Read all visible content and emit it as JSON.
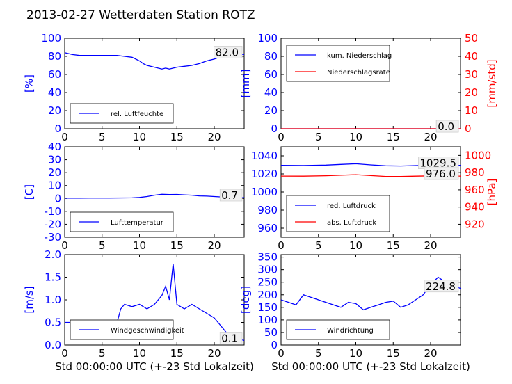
{
  "figure": {
    "title": "2013-02-27 Wetterdaten Station ROTZ"
  },
  "chart_data": [
    {
      "id": "humidity",
      "type": "line",
      "xlim": [
        0,
        24
      ],
      "x_ticks": [
        "0",
        "5",
        "10",
        "15",
        "20"
      ],
      "ylim": [
        0,
        100
      ],
      "y_ticks": [
        "0",
        "20",
        "40",
        "60",
        "80",
        "100"
      ],
      "ylabel": "[%]",
      "legend": "bottom-left",
      "series": [
        {
          "name": "rel. Luftfeuchte",
          "color": "#0000ff",
          "x": [
            0,
            1,
            2,
            3,
            4,
            5,
            6,
            7,
            8,
            9,
            10,
            10.5,
            11,
            12,
            13,
            13.5,
            14,
            15,
            16,
            17,
            18,
            19,
            20,
            21,
            22,
            23,
            24
          ],
          "y": [
            84,
            82,
            81,
            81,
            81,
            81,
            81,
            81,
            80,
            79,
            75,
            72,
            70,
            68,
            66,
            67,
            66,
            68,
            69,
            70,
            72,
            75,
            77,
            80,
            81,
            82,
            82
          ]
        }
      ],
      "annotation": "82.0"
    },
    {
      "id": "precipitation",
      "type": "line",
      "xlim": [
        0,
        24
      ],
      "x_ticks": [
        "0",
        "5",
        "10",
        "15",
        "20"
      ],
      "ylim": [
        0,
        100
      ],
      "y_ticks": [
        "0",
        "20",
        "40",
        "60",
        "80",
        "100"
      ],
      "ylabel": "[mm]",
      "y2lim": [
        0,
        50
      ],
      "y2_ticks": [
        "0",
        "10",
        "20",
        "30",
        "40",
        "50"
      ],
      "y2label": "[mm/std]",
      "legend": "top-left",
      "series": [
        {
          "name": "kum. Niederschlag",
          "color": "#0000ff",
          "axis": "left",
          "x": [
            0,
            24
          ],
          "y": [
            0,
            0
          ]
        },
        {
          "name": "Niederschlagsrate",
          "color": "#ff0000",
          "axis": "right",
          "x": [
            0,
            24
          ],
          "y": [
            0,
            0
          ]
        }
      ],
      "annotation": "0.0",
      "annotation2": "0.0"
    },
    {
      "id": "temperature",
      "type": "line",
      "xlim": [
        0,
        24
      ],
      "x_ticks": [
        "0",
        "5",
        "10",
        "15",
        "20"
      ],
      "ylim": [
        -30,
        40
      ],
      "y_ticks": [
        "-30",
        "-20",
        "-10",
        "0",
        "10",
        "20",
        "30",
        "40"
      ],
      "ylabel": "[C]",
      "legend": "bottom-left",
      "series": [
        {
          "name": "Lufttemperatur",
          "color": "#0000ff",
          "x": [
            0,
            2,
            4,
            6,
            8,
            9,
            10,
            11,
            12,
            13,
            14,
            15,
            16,
            17,
            18,
            19,
            20,
            21,
            22,
            23,
            24
          ],
          "y": [
            0.2,
            0.2,
            0.3,
            0.3,
            0.4,
            0.5,
            0.8,
            1.5,
            2.5,
            3.2,
            3.0,
            3.1,
            2.8,
            2.5,
            2.0,
            1.8,
            1.5,
            1.2,
            1.0,
            0.8,
            0.7
          ]
        }
      ],
      "annotation": "0.7"
    },
    {
      "id": "pressure",
      "type": "line",
      "xlim": [
        0,
        24
      ],
      "x_ticks": [
        "0",
        "5",
        "10",
        "15",
        "20"
      ],
      "ylim": [
        950,
        1050
      ],
      "y_ticks": [
        "960",
        "980",
        "1000",
        "1020",
        "1040"
      ],
      "y2lim": [
        905,
        1010
      ],
      "y2_ticks": [
        "920",
        "940",
        "960",
        "980",
        "1000"
      ],
      "y2label": "[hPa]",
      "legend": "bottom-left",
      "series": [
        {
          "name": "red. Luftdruck",
          "color": "#0000ff",
          "axis": "left",
          "x": [
            0,
            3,
            6,
            8,
            10,
            12,
            14,
            16,
            18,
            20,
            22,
            24
          ],
          "y": [
            1029.5,
            1029.3,
            1029.8,
            1030.5,
            1031.2,
            1030.0,
            1029.0,
            1028.8,
            1029.2,
            1029.6,
            1029.5,
            1029.5
          ]
        },
        {
          "name": "abs. Luftdruck",
          "color": "#ff0000",
          "axis": "right",
          "x": [
            0,
            3,
            6,
            8,
            10,
            12,
            14,
            16,
            18,
            20,
            22,
            24
          ],
          "y": [
            976.0,
            975.9,
            976.4,
            977.0,
            977.6,
            976.6,
            975.6,
            975.5,
            975.9,
            976.2,
            976.0,
            976.0
          ]
        }
      ],
      "annotation": "1029.5",
      "annotation2": "976.0"
    },
    {
      "id": "windspeed",
      "type": "line",
      "xlim": [
        0,
        24
      ],
      "x_ticks": [
        "0",
        "5",
        "10",
        "15",
        "20"
      ],
      "ylim": [
        0,
        2.0
      ],
      "y_ticks": [
        "0.0",
        "0.5",
        "1.0",
        "1.5",
        "2.0"
      ],
      "ylabel": "[m/s]",
      "xlabel": "Std 00:00:00 UTC (+-23 Std Lokalzeit)",
      "legend": "bottom-left",
      "series": [
        {
          "name": "Windgeschwindigkeit",
          "color": "#0000ff",
          "x": [
            0,
            1,
            2,
            3,
            4,
            5,
            6,
            7,
            7.5,
            8,
            9,
            10,
            11,
            12,
            13,
            13.5,
            14,
            14.5,
            15,
            16,
            17,
            18,
            19,
            20,
            21,
            22,
            23,
            24
          ],
          "y": [
            0.5,
            0.5,
            0.4,
            0.45,
            0.5,
            0.5,
            0.45,
            0.5,
            0.8,
            0.9,
            0.85,
            0.9,
            0.8,
            0.9,
            1.1,
            1.3,
            1.0,
            1.8,
            0.9,
            0.8,
            0.9,
            0.8,
            0.7,
            0.6,
            0.4,
            0.2,
            0.15,
            0.1
          ]
        }
      ],
      "annotation": "0.1"
    },
    {
      "id": "winddirection",
      "type": "line",
      "xlim": [
        0,
        24
      ],
      "x_ticks": [
        "0",
        "5",
        "10",
        "15",
        "20"
      ],
      "ylim": [
        0,
        360
      ],
      "y_ticks": [
        "0",
        "50",
        "100",
        "150",
        "200",
        "250",
        "300",
        "350"
      ],
      "ylabel": "[deg]",
      "xlabel": "Std 00:00:00 UTC (+-23 Std Lokalzeit)",
      "legend": "bottom-left",
      "series": [
        {
          "name": "Windrichtung",
          "color": "#0000ff",
          "x": [
            0,
            1,
            2,
            3,
            4,
            5,
            6,
            7,
            8,
            9,
            10,
            11,
            12,
            13,
            14,
            15,
            16,
            17,
            18,
            19,
            20,
            21,
            22,
            23,
            24
          ],
          "y": [
            180,
            170,
            160,
            200,
            190,
            180,
            170,
            160,
            150,
            170,
            165,
            140,
            150,
            160,
            170,
            175,
            150,
            160,
            180,
            200,
            240,
            270,
            250,
            240,
            225
          ]
        }
      ],
      "annotation": "224.8"
    }
  ]
}
